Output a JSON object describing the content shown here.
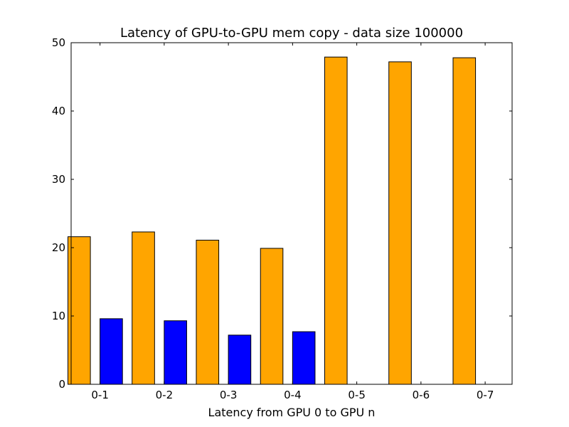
{
  "chart_data": {
    "type": "bar",
    "title": "Latency of GPU-to-GPU mem copy - data size 100000",
    "xlabel": "Latency from GPU 0 to GPU n",
    "ylabel": "",
    "categories": [
      "0-1",
      "0-2",
      "0-3",
      "0-4",
      "0-5",
      "0-6",
      "0-7"
    ],
    "series": [
      {
        "values": [
          21.6,
          22.3,
          21.1,
          19.9,
          47.9,
          47.2,
          47.8
        ],
        "color": "#FFA500"
      },
      {
        "values": [
          9.6,
          9.3,
          7.2,
          7.7,
          0,
          0,
          0
        ],
        "color": "#0000FF"
      }
    ],
    "ylim": [
      0,
      50
    ],
    "yticks": [
      0,
      10,
      20,
      30,
      40,
      50
    ],
    "grid": false,
    "legend": "none"
  }
}
